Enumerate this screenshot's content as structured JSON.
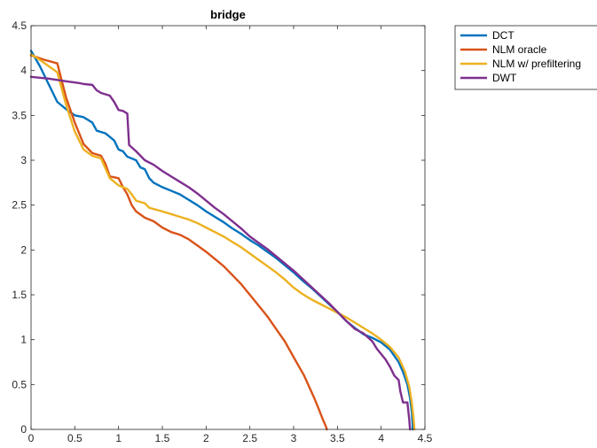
{
  "chart_data": {
    "type": "line",
    "title": "bridge",
    "xlabel": "",
    "ylabel": "",
    "xlim": [
      0,
      4.5
    ],
    "ylim": [
      0,
      4.5
    ],
    "xticks": [
      "0",
      "0.5",
      "1",
      "1.5",
      "2",
      "2.5",
      "3",
      "3.5",
      "4",
      "4.5"
    ],
    "yticks": [
      "0",
      "0.5",
      "1",
      "1.5",
      "2",
      "2.5",
      "3",
      "3.5",
      "4",
      "4.5"
    ],
    "grid": false,
    "legend_position": "outside-top-right",
    "series": [
      {
        "name": "DCT",
        "color": "#0072BD",
        "points": [
          [
            0,
            4.22
          ],
          [
            0.1,
            4.05
          ],
          [
            0.2,
            3.85
          ],
          [
            0.3,
            3.65
          ],
          [
            0.4,
            3.57
          ],
          [
            0.5,
            3.5
          ],
          [
            0.6,
            3.48
          ],
          [
            0.7,
            3.42
          ],
          [
            0.75,
            3.33
          ],
          [
            0.85,
            3.3
          ],
          [
            0.95,
            3.22
          ],
          [
            1.0,
            3.12
          ],
          [
            1.05,
            3.1
          ],
          [
            1.1,
            3.04
          ],
          [
            1.2,
            3.0
          ],
          [
            1.25,
            2.92
          ],
          [
            1.3,
            2.9
          ],
          [
            1.35,
            2.8
          ],
          [
            1.4,
            2.75
          ],
          [
            1.5,
            2.7
          ],
          [
            1.6,
            2.66
          ],
          [
            1.7,
            2.62
          ],
          [
            1.8,
            2.56
          ],
          [
            1.9,
            2.5
          ],
          [
            2.0,
            2.43
          ],
          [
            2.1,
            2.37
          ],
          [
            2.2,
            2.31
          ],
          [
            2.3,
            2.24
          ],
          [
            2.4,
            2.18
          ],
          [
            2.5,
            2.11
          ],
          [
            2.6,
            2.05
          ],
          [
            2.7,
            1.98
          ],
          [
            2.8,
            1.91
          ],
          [
            2.9,
            1.83
          ],
          [
            3.0,
            1.75
          ],
          [
            3.1,
            1.66
          ],
          [
            3.2,
            1.58
          ],
          [
            3.3,
            1.49
          ],
          [
            3.4,
            1.4
          ],
          [
            3.5,
            1.31
          ],
          [
            3.6,
            1.21
          ],
          [
            3.7,
            1.13
          ],
          [
            3.8,
            1.06
          ],
          [
            3.9,
            1.02
          ],
          [
            4.0,
            0.97
          ],
          [
            4.1,
            0.89
          ],
          [
            4.2,
            0.75
          ],
          [
            4.25,
            0.64
          ],
          [
            4.3,
            0.5
          ],
          [
            4.33,
            0.35
          ],
          [
            4.35,
            0.2
          ],
          [
            4.36,
            0.05
          ],
          [
            4.36,
            0
          ]
        ]
      },
      {
        "name": "NLM oracle",
        "color": "#D95319",
        "points": [
          [
            0,
            4.17
          ],
          [
            0.15,
            4.12
          ],
          [
            0.3,
            4.08
          ],
          [
            0.4,
            3.7
          ],
          [
            0.5,
            3.42
          ],
          [
            0.6,
            3.18
          ],
          [
            0.7,
            3.08
          ],
          [
            0.8,
            3.05
          ],
          [
            0.85,
            2.96
          ],
          [
            0.9,
            2.82
          ],
          [
            1.0,
            2.8
          ],
          [
            1.05,
            2.7
          ],
          [
            1.1,
            2.62
          ],
          [
            1.15,
            2.5
          ],
          [
            1.2,
            2.43
          ],
          [
            1.3,
            2.36
          ],
          [
            1.4,
            2.32
          ],
          [
            1.5,
            2.25
          ],
          [
            1.6,
            2.2
          ],
          [
            1.7,
            2.17
          ],
          [
            1.8,
            2.12
          ],
          [
            1.9,
            2.05
          ],
          [
            2.0,
            1.98
          ],
          [
            2.1,
            1.9
          ],
          [
            2.2,
            1.82
          ],
          [
            2.3,
            1.72
          ],
          [
            2.4,
            1.62
          ],
          [
            2.5,
            1.5
          ],
          [
            2.6,
            1.38
          ],
          [
            2.7,
            1.26
          ],
          [
            2.8,
            1.12
          ],
          [
            2.9,
            0.98
          ],
          [
            2.98,
            0.84
          ],
          [
            3.05,
            0.72
          ],
          [
            3.12,
            0.6
          ],
          [
            3.18,
            0.47
          ],
          [
            3.24,
            0.34
          ],
          [
            3.29,
            0.22
          ],
          [
            3.33,
            0.12
          ],
          [
            3.37,
            0.03
          ],
          [
            3.38,
            0
          ]
        ]
      },
      {
        "name": "NLM w/ prefiltering",
        "color": "#EDB120",
        "points": [
          [
            0,
            4.18
          ],
          [
            0.1,
            4.12
          ],
          [
            0.2,
            4.05
          ],
          [
            0.3,
            3.98
          ],
          [
            0.4,
            3.62
          ],
          [
            0.5,
            3.32
          ],
          [
            0.6,
            3.12
          ],
          [
            0.7,
            3.05
          ],
          [
            0.8,
            3.02
          ],
          [
            0.9,
            2.8
          ],
          [
            1.0,
            2.72
          ],
          [
            1.1,
            2.68
          ],
          [
            1.15,
            2.62
          ],
          [
            1.2,
            2.55
          ],
          [
            1.3,
            2.52
          ],
          [
            1.35,
            2.47
          ],
          [
            1.5,
            2.43
          ],
          [
            1.6,
            2.4
          ],
          [
            1.7,
            2.37
          ],
          [
            1.8,
            2.34
          ],
          [
            1.9,
            2.3
          ],
          [
            2.0,
            2.25
          ],
          [
            2.1,
            2.2
          ],
          [
            2.2,
            2.15
          ],
          [
            2.3,
            2.09
          ],
          [
            2.4,
            2.03
          ],
          [
            2.5,
            1.96
          ],
          [
            2.6,
            1.89
          ],
          [
            2.7,
            1.82
          ],
          [
            2.8,
            1.75
          ],
          [
            2.9,
            1.67
          ],
          [
            3.0,
            1.58
          ],
          [
            3.1,
            1.51
          ],
          [
            3.2,
            1.45
          ],
          [
            3.3,
            1.4
          ],
          [
            3.4,
            1.35
          ],
          [
            3.5,
            1.3
          ],
          [
            3.6,
            1.25
          ],
          [
            3.7,
            1.19
          ],
          [
            3.8,
            1.13
          ],
          [
            3.9,
            1.07
          ],
          [
            4.0,
            1.0
          ],
          [
            4.1,
            0.92
          ],
          [
            4.2,
            0.8
          ],
          [
            4.27,
            0.65
          ],
          [
            4.32,
            0.48
          ],
          [
            4.35,
            0.3
          ],
          [
            4.37,
            0.12
          ],
          [
            4.38,
            0
          ]
        ]
      },
      {
        "name": "DWT",
        "color": "#7E2F8E",
        "points": [
          [
            0,
            3.93
          ],
          [
            0.2,
            3.91
          ],
          [
            0.4,
            3.88
          ],
          [
            0.55,
            3.86
          ],
          [
            0.6,
            3.85
          ],
          [
            0.7,
            3.84
          ],
          [
            0.75,
            3.78
          ],
          [
            0.8,
            3.75
          ],
          [
            0.9,
            3.72
          ],
          [
            0.95,
            3.65
          ],
          [
            1.0,
            3.56
          ],
          [
            1.05,
            3.55
          ],
          [
            1.1,
            3.52
          ],
          [
            1.12,
            3.17
          ],
          [
            1.2,
            3.1
          ],
          [
            1.3,
            3.0
          ],
          [
            1.4,
            2.95
          ],
          [
            1.5,
            2.88
          ],
          [
            1.6,
            2.82
          ],
          [
            1.7,
            2.76
          ],
          [
            1.8,
            2.7
          ],
          [
            1.9,
            2.63
          ],
          [
            2.0,
            2.55
          ],
          [
            2.1,
            2.47
          ],
          [
            2.2,
            2.4
          ],
          [
            2.3,
            2.32
          ],
          [
            2.4,
            2.24
          ],
          [
            2.5,
            2.15
          ],
          [
            2.6,
            2.08
          ],
          [
            2.7,
            2.01
          ],
          [
            2.8,
            1.93
          ],
          [
            2.9,
            1.85
          ],
          [
            3.0,
            1.77
          ],
          [
            3.1,
            1.68
          ],
          [
            3.2,
            1.59
          ],
          [
            3.3,
            1.5
          ],
          [
            3.4,
            1.41
          ],
          [
            3.5,
            1.31
          ],
          [
            3.6,
            1.21
          ],
          [
            3.7,
            1.12
          ],
          [
            3.8,
            1.07
          ],
          [
            3.9,
            0.98
          ],
          [
            3.95,
            0.9
          ],
          [
            4.05,
            0.78
          ],
          [
            4.1,
            0.7
          ],
          [
            4.15,
            0.6
          ],
          [
            4.2,
            0.55
          ],
          [
            4.22,
            0.42
          ],
          [
            4.25,
            0.3
          ],
          [
            4.3,
            0.3
          ],
          [
            4.32,
            0.12
          ],
          [
            4.33,
            0
          ]
        ]
      }
    ]
  }
}
